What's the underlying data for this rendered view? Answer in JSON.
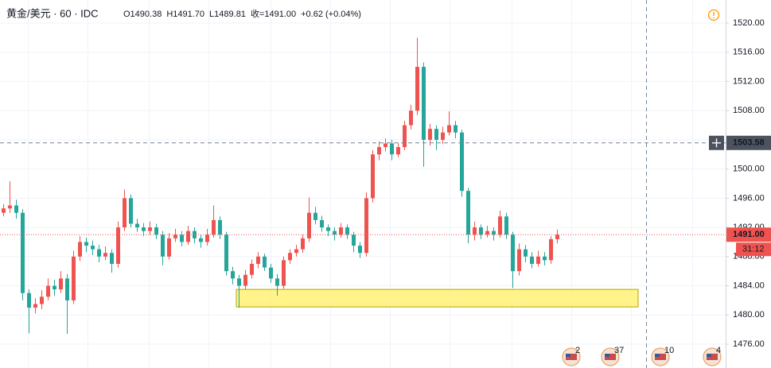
{
  "chart_data": {
    "type": "candlestick",
    "title": "黄金/美元 · 60 · IDC",
    "ohlc_header": [
      "O1490.38",
      "H1491.70",
      "L1489.81",
      "收=1491.00",
      "+0.62 (+0.04%)"
    ],
    "up_color": "#ef5350",
    "down_color": "#26a69a",
    "ylim": [
      1472.73,
      1523.16
    ],
    "yticks": [
      {
        "value": 1476,
        "label": "1476.00"
      },
      {
        "value": 1480,
        "label": "1480.00"
      },
      {
        "value": 1484,
        "label": "1484.00"
      },
      {
        "value": 1488,
        "label": "1488.00"
      },
      {
        "value": 1492,
        "label": "1492.00"
      },
      {
        "value": 1496,
        "label": "1496.00"
      },
      {
        "value": 1500,
        "label": "1500.00"
      },
      {
        "value": 1504,
        "label": "1504.00"
      },
      {
        "value": 1508,
        "label": "1508.00"
      },
      {
        "value": 1512,
        "label": "1512.00"
      },
      {
        "value": 1516,
        "label": "1516.00"
      },
      {
        "value": 1520,
        "label": "1520.00"
      }
    ],
    "grid": true,
    "ohlc": [
      [
        1494.0,
        1495.2,
        1493.5,
        1494.6
      ],
      [
        1494.6,
        1498.3,
        1494.0,
        1495.0
      ],
      [
        1495.0,
        1495.8,
        1493.2,
        1494.0
      ],
      [
        1494.0,
        1494.5,
        1482.0,
        1483.0
      ],
      [
        1483.0,
        1483.5,
        1477.5,
        1481.0
      ],
      [
        1481.0,
        1482.3,
        1480.2,
        1481.5
      ],
      [
        1481.5,
        1483.4,
        1480.8,
        1482.5
      ],
      [
        1482.5,
        1485.0,
        1482.0,
        1484.0
      ],
      [
        1484.0,
        1484.8,
        1482.6,
        1483.5
      ],
      [
        1483.5,
        1486.0,
        1483.0,
        1485.0
      ],
      [
        1485.0,
        1485.6,
        1477.4,
        1482.0
      ],
      [
        1482.0,
        1488.8,
        1481.5,
        1488.0
      ],
      [
        1488.0,
        1490.8,
        1487.4,
        1490.0
      ],
      [
        1490.0,
        1490.6,
        1488.6,
        1489.5
      ],
      [
        1489.5,
        1490.2,
        1488.2,
        1489.0
      ],
      [
        1489.0,
        1489.6,
        1487.2,
        1488.0
      ],
      [
        1488.0,
        1489.4,
        1487.5,
        1488.5
      ],
      [
        1488.5,
        1489.0,
        1485.8,
        1487.0
      ],
      [
        1487.0,
        1492.8,
        1486.5,
        1492.0
      ],
      [
        1492.0,
        1497.2,
        1491.5,
        1496.0
      ],
      [
        1496.0,
        1496.5,
        1492.0,
        1492.5
      ],
      [
        1492.5,
        1493.2,
        1491.4,
        1492.0
      ],
      [
        1492.0,
        1492.6,
        1490.8,
        1491.5
      ],
      [
        1491.5,
        1492.8,
        1491.0,
        1492.0
      ],
      [
        1492.0,
        1492.5,
        1490.4,
        1491.0
      ],
      [
        1491.0,
        1491.5,
        1486.8,
        1488.0
      ],
      [
        1488.0,
        1491.2,
        1487.6,
        1490.5
      ],
      [
        1490.5,
        1491.8,
        1490.0,
        1491.0
      ],
      [
        1491.0,
        1491.5,
        1489.4,
        1490.0
      ],
      [
        1490.0,
        1492.2,
        1489.6,
        1491.5
      ],
      [
        1491.5,
        1492.0,
        1489.8,
        1490.5
      ],
      [
        1490.5,
        1491.0,
        1489.2,
        1490.0
      ],
      [
        1490.0,
        1491.8,
        1489.5,
        1491.0
      ],
      [
        1491.0,
        1495.0,
        1490.6,
        1493.0
      ],
      [
        1493.0,
        1493.5,
        1490.4,
        1491.0
      ],
      [
        1491.0,
        1491.4,
        1485.4,
        1486.0
      ],
      [
        1486.0,
        1486.6,
        1484.2,
        1485.0
      ],
      [
        1485.0,
        1485.5,
        1481.0,
        1484.0
      ],
      [
        1484.0,
        1486.2,
        1483.5,
        1485.5
      ],
      [
        1485.5,
        1487.6,
        1485.0,
        1487.0
      ],
      [
        1487.0,
        1488.6,
        1486.4,
        1488.0
      ],
      [
        1488.0,
        1488.4,
        1486.0,
        1486.5
      ],
      [
        1486.5,
        1487.0,
        1484.4,
        1485.0
      ],
      [
        1485.0,
        1485.6,
        1482.6,
        1484.0
      ],
      [
        1484.0,
        1488.0,
        1483.6,
        1487.5
      ],
      [
        1487.5,
        1489.0,
        1487.0,
        1488.5
      ],
      [
        1488.5,
        1489.6,
        1488.0,
        1489.0
      ],
      [
        1489.0,
        1491.0,
        1488.5,
        1490.5
      ],
      [
        1490.5,
        1496.1,
        1490.0,
        1494.0
      ],
      [
        1494.0,
        1494.8,
        1492.4,
        1493.0
      ],
      [
        1493.0,
        1493.6,
        1491.4,
        1492.0
      ],
      [
        1492.0,
        1492.4,
        1490.8,
        1491.5
      ],
      [
        1491.5,
        1492.0,
        1490.2,
        1491.0
      ],
      [
        1491.0,
        1492.6,
        1490.6,
        1492.0
      ],
      [
        1492.0,
        1492.4,
        1490.4,
        1491.0
      ],
      [
        1491.0,
        1491.4,
        1488.6,
        1489.5
      ],
      [
        1489.5,
        1490.0,
        1487.8,
        1488.5
      ],
      [
        1488.5,
        1496.8,
        1488.0,
        1496.0
      ],
      [
        1496.0,
        1502.6,
        1495.4,
        1502.0
      ],
      [
        1502.0,
        1503.8,
        1501.2,
        1503.0
      ],
      [
        1503.0,
        1504.2,
        1502.4,
        1503.5
      ],
      [
        1503.5,
        1504.0,
        1501.2,
        1502.0
      ],
      [
        1502.0,
        1503.6,
        1501.6,
        1503.0
      ],
      [
        1503.0,
        1506.6,
        1502.6,
        1506.0
      ],
      [
        1506.0,
        1508.8,
        1505.4,
        1508.0
      ],
      [
        1508.0,
        1518.0,
        1507.4,
        1514.0
      ],
      [
        1514.0,
        1514.6,
        1500.3,
        1504.0
      ],
      [
        1504.0,
        1506.2,
        1503.2,
        1505.5
      ],
      [
        1505.5,
        1506.0,
        1502.6,
        1504.0
      ],
      [
        1504.0,
        1505.8,
        1503.4,
        1505.0
      ],
      [
        1505.0,
        1507.9,
        1504.6,
        1506.0
      ],
      [
        1506.0,
        1506.6,
        1504.2,
        1505.0
      ],
      [
        1505.0,
        1505.4,
        1496.2,
        1497.0
      ],
      [
        1497.0,
        1497.4,
        1489.8,
        1491.0
      ],
      [
        1491.0,
        1492.8,
        1490.2,
        1492.0
      ],
      [
        1492.0,
        1492.4,
        1490.4,
        1491.0
      ],
      [
        1491.0,
        1492.2,
        1490.6,
        1491.5
      ],
      [
        1491.5,
        1492.0,
        1490.2,
        1491.0
      ],
      [
        1491.0,
        1494.3,
        1490.6,
        1493.5
      ],
      [
        1493.5,
        1494.0,
        1490.4,
        1491.0
      ],
      [
        1491.0,
        1491.4,
        1483.7,
        1486.0
      ],
      [
        1486.0,
        1489.8,
        1485.4,
        1489.0
      ],
      [
        1489.0,
        1489.6,
        1487.2,
        1488.0
      ],
      [
        1488.0,
        1488.6,
        1486.4,
        1487.0
      ],
      [
        1487.0,
        1488.8,
        1486.6,
        1488.0
      ],
      [
        1488.0,
        1488.6,
        1486.8,
        1487.5
      ],
      [
        1487.5,
        1490.8,
        1487.0,
        1490.38
      ],
      [
        1490.38,
        1491.7,
        1489.81,
        1491.0
      ]
    ],
    "zone": {
      "y0": 1481.1,
      "y1": 1483.5,
      "color": "#fff176"
    },
    "crosshair": {
      "value": 1503.58,
      "label": "1503.58"
    },
    "last_price": {
      "value": 1491.0,
      "label": "1491.00"
    },
    "countdown": "31:12",
    "events": [
      "2",
      "37",
      "10",
      "4"
    ]
  }
}
